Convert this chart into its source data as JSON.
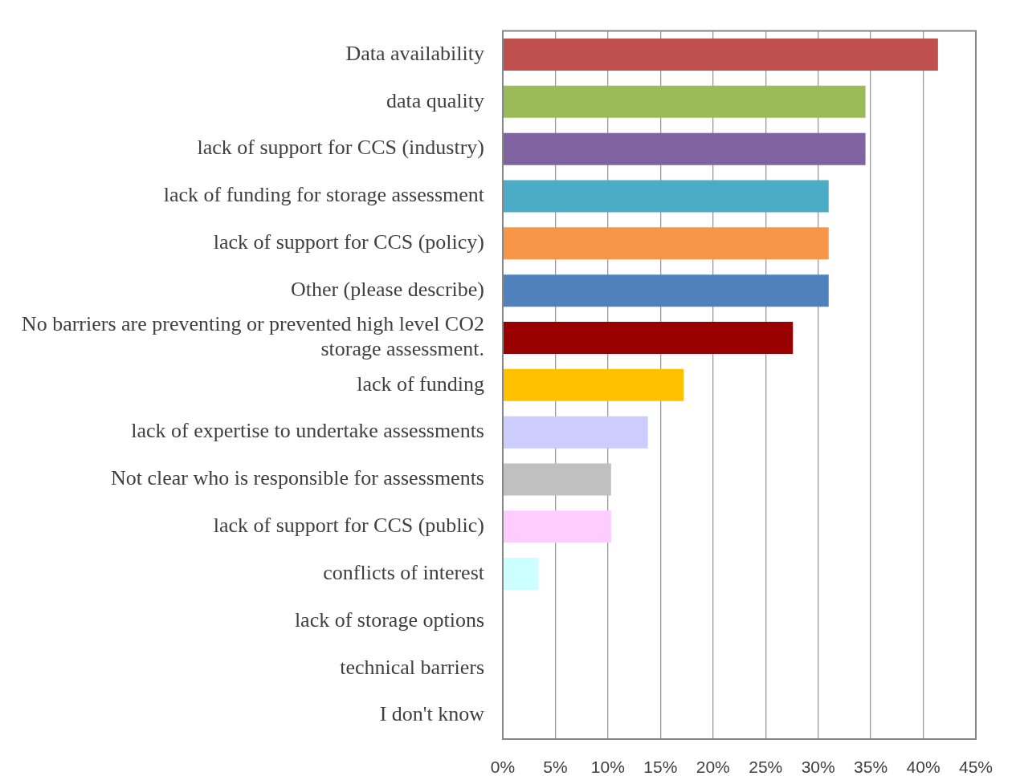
{
  "chart_data": {
    "type": "bar",
    "orientation": "horizontal",
    "categories": [
      "Data availability",
      "data quality",
      "lack of support for CCS (industry)",
      "lack of funding for storage assessment",
      "lack of support for CCS (policy)",
      "Other (please describe)",
      "No barriers are preventing or prevented high level CO2 storage assessment.",
      "lack of funding",
      "lack of expertise to undertake assessments",
      "Not clear who is responsible for assessments",
      "lack of support for CCS (public)",
      "conflicts of interest",
      "lack of storage options",
      "technical barriers",
      "I don't know"
    ],
    "values": [
      41.4,
      34.5,
      34.5,
      31.0,
      31.0,
      31.0,
      27.6,
      17.2,
      13.8,
      10.3,
      10.3,
      3.4,
      0,
      0,
      0
    ],
    "colors": [
      "#c0504d",
      "#9bbb59",
      "#8064a2",
      "#4bacc6",
      "#f79646",
      "#4f81bd",
      "#990000",
      "#ffc000",
      "#ccccff",
      "#c0c0c0",
      "#ffccff",
      "#ccffff",
      "#ccffff",
      "#ccffff",
      "#ccffff"
    ],
    "xlim": [
      0,
      45
    ],
    "xticks": [
      {
        "value": 0,
        "label": "0%"
      },
      {
        "value": 5,
        "label": "5%"
      },
      {
        "value": 10,
        "label": "10%"
      },
      {
        "value": 15,
        "label": "15%"
      },
      {
        "value": 20,
        "label": "20%"
      },
      {
        "value": 25,
        "label": "25%"
      },
      {
        "value": 30,
        "label": "30%"
      },
      {
        "value": 35,
        "label": "35%"
      },
      {
        "value": 40,
        "label": "40%"
      },
      {
        "value": 45,
        "label": "45%"
      }
    ],
    "grid": "x"
  }
}
